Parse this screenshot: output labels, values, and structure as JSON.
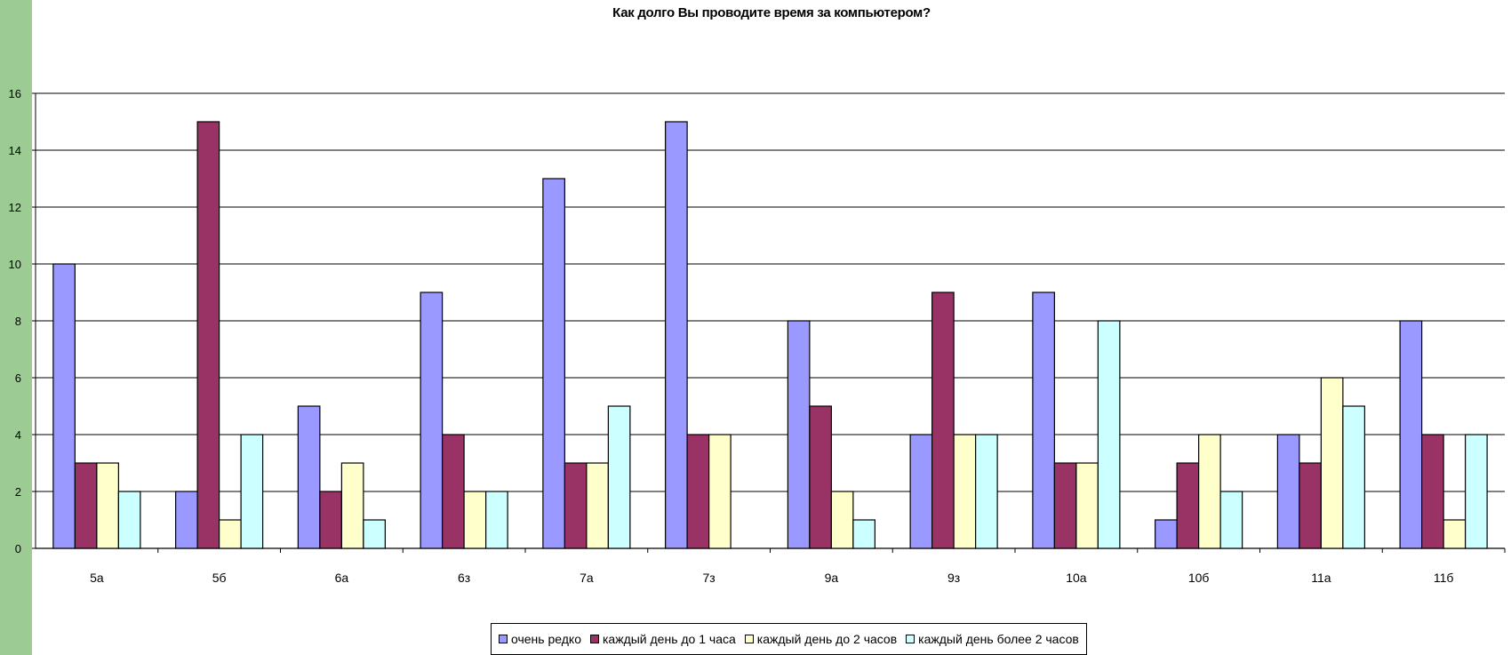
{
  "chart_data": {
    "type": "bar",
    "title": "Как долго Вы проводите время за компьютером?",
    "xlabel": "",
    "ylabel": "",
    "ylim": [
      0,
      16
    ],
    "yticks": [
      "0",
      "2",
      "4",
      "6",
      "8",
      "10",
      "12",
      "14",
      "16"
    ],
    "grid": true,
    "legend_position": "bottom",
    "categories": [
      "5а",
      "5б",
      "6а",
      "6з",
      "7а",
      "7з",
      "9а",
      "9з",
      "10а",
      "10б",
      "11а",
      "11б"
    ],
    "series": [
      {
        "name": "очень редко",
        "color": "#9999ff",
        "values": [
          10,
          2,
          5,
          9,
          13,
          15,
          8,
          4,
          9,
          1,
          4,
          8
        ]
      },
      {
        "name": "каждый день до 1 часа",
        "color": "#993366",
        "values": [
          3,
          15,
          2,
          4,
          3,
          4,
          5,
          9,
          3,
          3,
          3,
          4
        ]
      },
      {
        "name": "каждый день до 2 часов",
        "color": "#ffffcc",
        "values": [
          3,
          1,
          3,
          2,
          3,
          4,
          2,
          4,
          3,
          4,
          6,
          1
        ]
      },
      {
        "name": "каждый день более 2 часов",
        "color": "#ccffff",
        "values": [
          2,
          4,
          1,
          2,
          5,
          0,
          1,
          4,
          8,
          2,
          5,
          4
        ]
      }
    ]
  }
}
